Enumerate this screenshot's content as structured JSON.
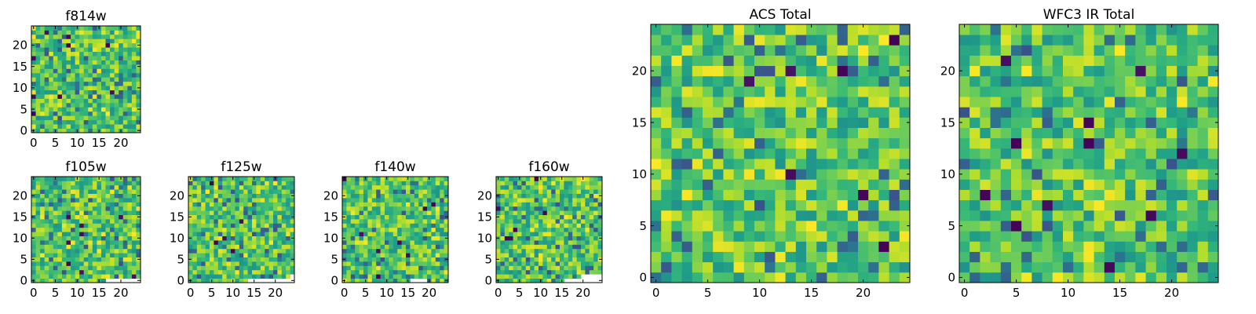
{
  "chart_data": [
    {
      "type": "heatmap",
      "title": "f814w",
      "xlim": [
        0,
        25
      ],
      "ylim": [
        0,
        25
      ],
      "xticks": [
        "0",
        "5",
        "10",
        "15",
        "20"
      ],
      "yticks": [
        "0",
        "5",
        "10",
        "15",
        "20"
      ],
      "colormap": "viridis",
      "seed": 814,
      "voids": []
    },
    {
      "type": "heatmap",
      "title": "f105w",
      "xlim": [
        0,
        25
      ],
      "ylim": [
        0,
        25
      ],
      "xticks": [
        "0",
        "5",
        "10",
        "15",
        "20"
      ],
      "yticks": [
        "0",
        "5",
        "10",
        "15",
        "20"
      ],
      "colormap": "viridis",
      "seed": 105,
      "voids": [
        [
          17,
          0
        ],
        [
          18,
          0
        ],
        [
          19,
          0
        ],
        [
          20,
          0
        ],
        [
          21,
          0
        ],
        [
          22,
          0
        ],
        [
          23,
          0
        ],
        [
          24,
          0
        ]
      ]
    },
    {
      "type": "heatmap",
      "title": "f125w",
      "xlim": [
        0,
        25
      ],
      "ylim": [
        0,
        25
      ],
      "xticks": [
        "0",
        "5",
        "10",
        "15",
        "20"
      ],
      "yticks": [
        "0",
        "5",
        "10",
        "15",
        "20"
      ],
      "colormap": "viridis",
      "seed": 125,
      "voids": [
        [
          14,
          0
        ],
        [
          15,
          0
        ],
        [
          16,
          0
        ],
        [
          17,
          0
        ],
        [
          18,
          0
        ],
        [
          19,
          0
        ],
        [
          20,
          0
        ],
        [
          21,
          0
        ],
        [
          22,
          0
        ],
        [
          23,
          0
        ],
        [
          24,
          0
        ],
        [
          24,
          1
        ]
      ]
    },
    {
      "type": "heatmap",
      "title": "f140w",
      "xlim": [
        0,
        25
      ],
      "ylim": [
        0,
        25
      ],
      "xticks": [
        "0",
        "5",
        "10",
        "15",
        "20"
      ],
      "yticks": [
        "0",
        "5",
        "10",
        "15",
        "20"
      ],
      "colormap": "viridis",
      "seed": 140,
      "voids": [
        [
          16,
          0
        ],
        [
          17,
          0
        ],
        [
          18,
          0
        ],
        [
          19,
          0
        ]
      ]
    },
    {
      "type": "heatmap",
      "title": "f160w",
      "xlim": [
        0,
        25
      ],
      "ylim": [
        0,
        25
      ],
      "xticks": [
        "0",
        "5",
        "10",
        "15",
        "20"
      ],
      "yticks": [
        "0",
        "5",
        "10",
        "15",
        "20"
      ],
      "colormap": "viridis",
      "seed": 160,
      "voids": [
        [
          16,
          0
        ],
        [
          17,
          0
        ],
        [
          18,
          0
        ],
        [
          19,
          0
        ],
        [
          20,
          0
        ],
        [
          21,
          0
        ],
        [
          22,
          0
        ],
        [
          23,
          0
        ],
        [
          24,
          0
        ],
        [
          20,
          1
        ],
        [
          21,
          1
        ],
        [
          22,
          1
        ],
        [
          23,
          1
        ],
        [
          24,
          1
        ]
      ]
    },
    {
      "type": "heatmap",
      "title": "ACS Total",
      "xlim": [
        0,
        25
      ],
      "ylim": [
        0,
        25
      ],
      "xticks": [
        "0",
        "5",
        "10",
        "15",
        "20"
      ],
      "yticks": [
        "0",
        "5",
        "10",
        "15",
        "20"
      ],
      "colormap": "viridis",
      "seed": 901,
      "voids": []
    },
    {
      "type": "heatmap",
      "title": "WFC3 IR Total",
      "xlim": [
        0,
        25
      ],
      "ylim": [
        0,
        25
      ],
      "xticks": [
        "0",
        "5",
        "10",
        "15",
        "20"
      ],
      "yticks": [
        "0",
        "5",
        "10",
        "15",
        "20"
      ],
      "colormap": "viridis",
      "seed": 902,
      "voids": []
    }
  ]
}
